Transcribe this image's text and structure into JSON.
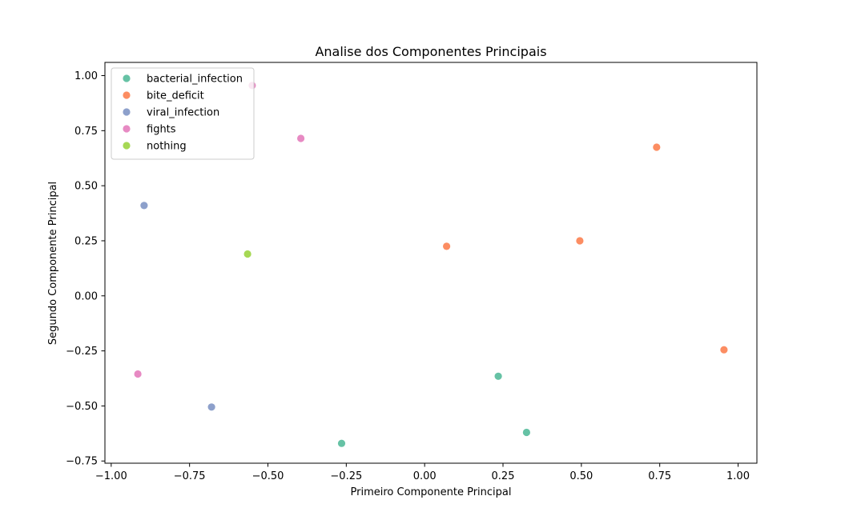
{
  "chart_data": {
    "type": "scatter",
    "title": "Analise dos Componentes Principais",
    "xlabel": "Primeiro Componente Principal",
    "ylabel": "Segundo Componente Principal",
    "xlim": [
      -1.02,
      1.06
    ],
    "ylim": [
      -0.76,
      1.06
    ],
    "xticks": [
      -1.0,
      -0.75,
      -0.5,
      -0.25,
      0.0,
      0.25,
      0.5,
      0.75,
      1.0
    ],
    "xtick_labels": [
      "−1.00",
      "−0.75",
      "−0.50",
      "−0.25",
      "0.00",
      "0.25",
      "0.50",
      "0.75",
      "1.00"
    ],
    "yticks": [
      -0.75,
      -0.5,
      -0.25,
      0.0,
      0.25,
      0.5,
      0.75,
      1.0
    ],
    "ytick_labels": [
      "−0.75",
      "−0.50",
      "−0.25",
      "0.00",
      "0.25",
      "0.50",
      "0.75",
      "1.00"
    ],
    "grid": false,
    "legend_position": "top-left",
    "series": [
      {
        "name": "bacterial_infection",
        "color": "#66c2a5",
        "points": [
          [
            -0.265,
            -0.67
          ],
          [
            0.235,
            -0.365
          ],
          [
            0.325,
            -0.62
          ]
        ]
      },
      {
        "name": "bite_deficit",
        "color": "#fc8d62",
        "points": [
          [
            0.07,
            0.225
          ],
          [
            0.495,
            0.25
          ],
          [
            0.74,
            0.675
          ],
          [
            0.955,
            -0.245
          ]
        ]
      },
      {
        "name": "viral_infection",
        "color": "#8da0cb",
        "points": [
          [
            -0.895,
            0.41
          ],
          [
            -0.68,
            -0.505
          ]
        ]
      },
      {
        "name": "fights",
        "color": "#e78ac3",
        "points": [
          [
            -0.55,
            0.955
          ],
          [
            -0.395,
            0.715
          ],
          [
            -0.915,
            -0.355
          ]
        ]
      },
      {
        "name": "nothing",
        "color": "#a6d854",
        "points": [
          [
            -0.565,
            0.19
          ]
        ]
      }
    ]
  }
}
